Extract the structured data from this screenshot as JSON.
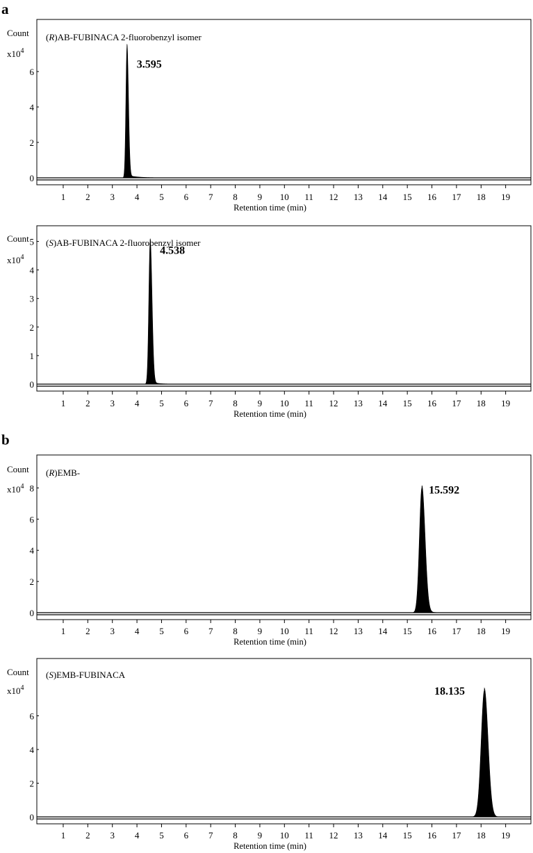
{
  "panels": [
    {
      "letter": "a"
    },
    {
      "letter": "b"
    }
  ],
  "chart_data": [
    {
      "type": "area",
      "panel": "a",
      "title_italic": "R",
      "title": "AB-FUBINACA 2-fluorobenzyl isomer",
      "ylabel": "Count",
      "yunit": "x10",
      "yunit_exp": "4",
      "xlabel": "Retention time (min)",
      "xlim": [
        0,
        20
      ],
      "ylim": [
        0,
        8
      ],
      "xticks": [
        1,
        2,
        3,
        4,
        5,
        6,
        7,
        8,
        9,
        10,
        11,
        12,
        13,
        14,
        15,
        16,
        17,
        18,
        19
      ],
      "yticks": [
        0,
        2,
        4,
        6
      ],
      "peaks": [
        {
          "rt": 3.595,
          "label": "3.595",
          "height": 7.4,
          "sigma_left": 0.045,
          "sigma_right": 0.06,
          "tail": 0.4
        }
      ],
      "grid": false
    },
    {
      "type": "area",
      "panel": "a",
      "title_italic": "S",
      "title": "AB-FUBINACA 2-fluorobenzyl isomer",
      "ylabel": "Count",
      "yunit": "x10",
      "yunit_exp": "4",
      "xlabel": "Retention time (min)",
      "xlim": [
        0,
        20
      ],
      "ylim": [
        0,
        5.5
      ],
      "xticks": [
        1,
        2,
        3,
        4,
        5,
        6,
        7,
        8,
        9,
        10,
        11,
        12,
        13,
        14,
        15,
        16,
        17,
        18,
        19
      ],
      "yticks": [
        0,
        1,
        2,
        3,
        4,
        5
      ],
      "peaks": [
        {
          "rt": 4.538,
          "label": "4.538",
          "height": 5.0,
          "sigma_left": 0.055,
          "sigma_right": 0.075,
          "tail": 0.25
        }
      ],
      "grid": false
    },
    {
      "type": "area",
      "panel": "b",
      "title_italic": "R",
      "title": "EMB-",
      "ylabel": "Count",
      "yunit": "x10",
      "yunit_exp": "4",
      "xlabel": "Retention time (min)",
      "xlim": [
        0,
        20
      ],
      "ylim": [
        0,
        9
      ],
      "xticks": [
        1,
        2,
        3,
        4,
        5,
        6,
        7,
        8,
        9,
        10,
        11,
        12,
        13,
        14,
        15,
        16,
        17,
        18,
        19
      ],
      "yticks": [
        0,
        2,
        4,
        6,
        8
      ],
      "peaks": [
        {
          "rt": 15.592,
          "label": "15.592",
          "height": 8.0,
          "sigma_left": 0.1,
          "sigma_right": 0.13,
          "tail": 0.22
        }
      ],
      "grid": false
    },
    {
      "type": "area",
      "panel": "b",
      "title_italic": "S",
      "title": "EMB-FUBINACA",
      "ylabel": "Count",
      "yunit": "x10",
      "yunit_exp": "4",
      "xlabel": "Retention time (min)",
      "xlim": [
        0,
        20
      ],
      "ylim": [
        0,
        8
      ],
      "xticks": [
        1,
        2,
        3,
        4,
        5,
        6,
        7,
        8,
        9,
        10,
        11,
        12,
        13,
        14,
        15,
        16,
        17,
        18,
        19
      ],
      "yticks": [
        0,
        2,
        4,
        6
      ],
      "peaks": [
        {
          "rt": 18.135,
          "label": "18.135",
          "height": 7.5,
          "sigma_left": 0.13,
          "sigma_right": 0.15,
          "tail": 0.1
        }
      ],
      "grid": false
    }
  ]
}
